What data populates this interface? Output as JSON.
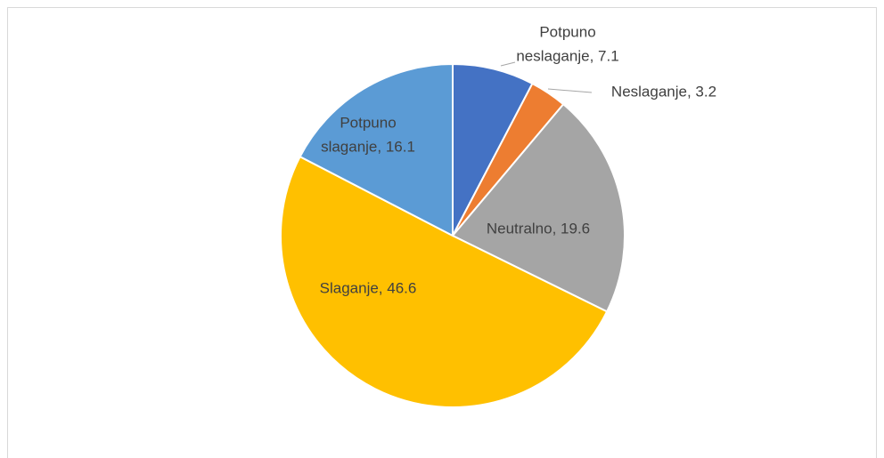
{
  "chart_data": {
    "type": "pie",
    "values": [
      7.1,
      3.2,
      19.6,
      46.6,
      16.1
    ],
    "value_labels": [
      "Potpuno neslaganje, 7.1",
      "Neslaganje, 3.2",
      "Neutralno, 19.6",
      "Slaganje, 46.6",
      "Potpuno slaganje, 16.1"
    ],
    "colors": [
      "#4472c4",
      "#ed7d31",
      "#a5a5a5",
      "#ffc000",
      "#5b9bd5"
    ]
  }
}
